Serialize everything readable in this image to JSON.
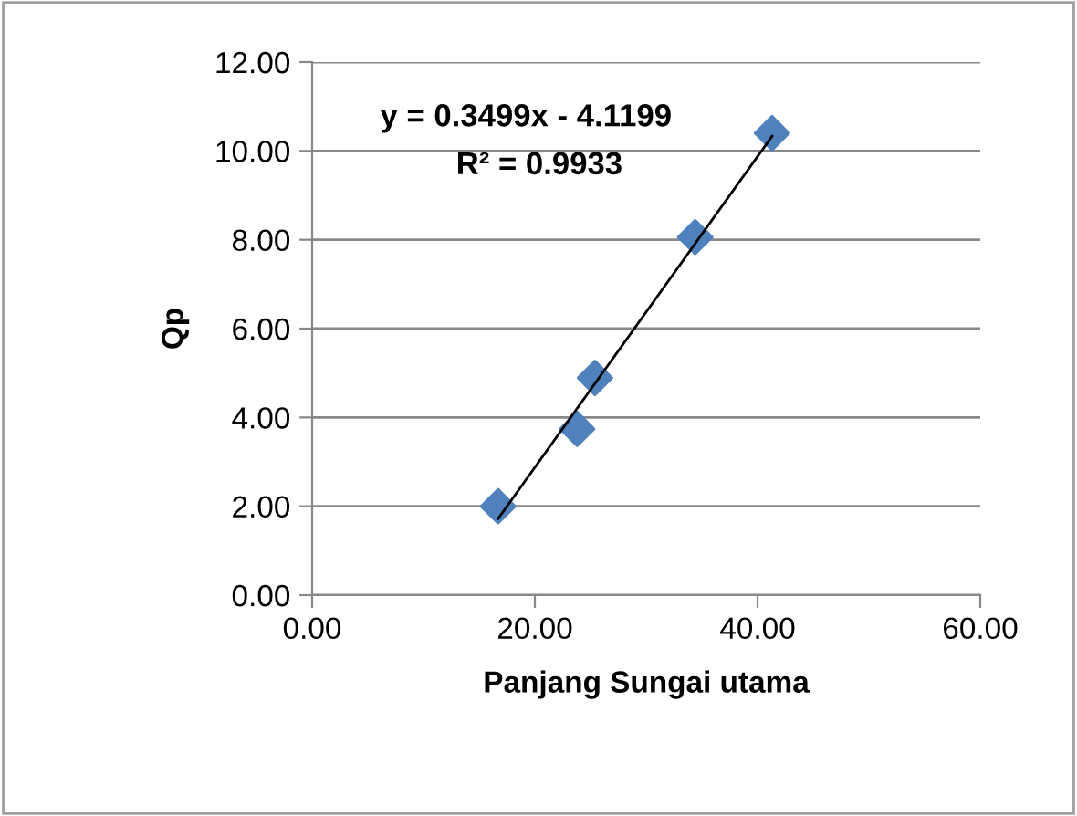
{
  "chart_data": {
    "type": "scatter",
    "xlabel": "Panjang Sungai utama",
    "ylabel": "Qp",
    "series": [
      {
        "color": "#4f81bd",
        "marker": "diamond",
        "x": [
          16.7,
          23.8,
          25.4,
          34.4,
          41.3
        ],
        "values": [
          2.0,
          3.74,
          4.89,
          8.06,
          10.4
        ]
      },
      {
        "type": "line",
        "color": "#000000",
        "marker": "none",
        "x": [
          16.7,
          41.3
        ],
        "values": [
          1.72,
          10.33
        ]
      }
    ],
    "annotations": [
      "y = 0.3499x - 4.1199",
      "R² = 0.9933"
    ],
    "xlim": [
      0,
      60
    ],
    "ylim": [
      0,
      12
    ],
    "xticks": [
      {
        "value": 0,
        "label": "0.00"
      },
      {
        "value": 20,
        "label": "20.00"
      },
      {
        "value": 40,
        "label": "40.00"
      },
      {
        "value": 60,
        "label": "60.00"
      }
    ],
    "yticks": [
      {
        "value": 0,
        "label": "0.00"
      },
      {
        "value": 2,
        "label": "2.00"
      },
      {
        "value": 4,
        "label": "4.00"
      },
      {
        "value": 6,
        "label": "6.00"
      },
      {
        "value": 8,
        "label": "8.00"
      },
      {
        "value": 10,
        "label": "10.00"
      },
      {
        "value": 12,
        "label": "12.00"
      }
    ],
    "grid": "y",
    "legend": false
  }
}
